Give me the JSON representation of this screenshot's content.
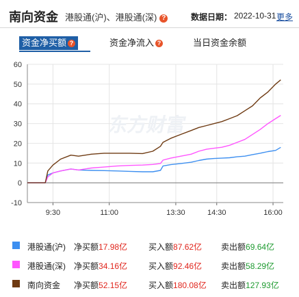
{
  "header": {
    "title": "南向资金",
    "subtitle": "港股通(沪)、港股通(深)",
    "help_icon": "question-icon",
    "date_label": "数据日期：",
    "date_value": "2022-10-31",
    "more_label": "更多"
  },
  "tabs": [
    {
      "label": "资金净买额",
      "active": true
    },
    {
      "label": "资金净流入",
      "active": false
    },
    {
      "label": "当日资金余额",
      "active": false
    }
  ],
  "watermark": "东方财富",
  "colors": {
    "accent": "#1f5fa6",
    "hgt_sh": "#3d8ff0",
    "hgt_sz": "#ff55ff",
    "south": "#6e3a12",
    "up": "#e0241b",
    "down": "#1d9a2f"
  },
  "chart_data": {
    "type": "line",
    "x_ticks": [
      "9:30",
      "11:00",
      "13:30",
      "14:30",
      "16:00"
    ],
    "y_ticks": [
      -10,
      0,
      10,
      20,
      30,
      40,
      50,
      60
    ],
    "ylim": [
      -10,
      60
    ],
    "grid": true,
    "series": [
      {
        "name": "港股通(沪)",
        "color": "#3d8ff0",
        "values": [
          [
            0,
            0
          ],
          [
            7,
            0
          ],
          [
            8,
            4
          ],
          [
            10,
            5
          ],
          [
            13,
            6
          ],
          [
            17,
            7
          ],
          [
            20,
            6.5
          ],
          [
            25,
            6.3
          ],
          [
            30,
            6.2
          ],
          [
            35,
            6.0
          ],
          [
            40,
            5.8
          ],
          [
            45,
            5.6
          ],
          [
            49,
            5.6
          ],
          [
            52,
            6.3
          ],
          [
            53,
            8.5
          ],
          [
            56,
            9.2
          ],
          [
            60,
            9.8
          ],
          [
            64,
            10.4
          ],
          [
            67,
            11.3
          ],
          [
            70,
            12.0
          ],
          [
            73,
            12.3
          ],
          [
            76,
            12.5
          ],
          [
            79,
            12.7
          ],
          [
            82,
            13.2
          ],
          [
            85,
            13.5
          ],
          [
            88,
            14.3
          ],
          [
            91,
            15.0
          ],
          [
            94,
            15.8
          ],
          [
            97,
            16.4
          ],
          [
            99,
            17.98
          ]
        ]
      },
      {
        "name": "港股通(深)",
        "color": "#ff55ff",
        "values": [
          [
            0,
            0
          ],
          [
            7,
            0
          ],
          [
            8,
            3
          ],
          [
            10,
            5
          ],
          [
            13,
            6
          ],
          [
            17,
            7
          ],
          [
            20,
            6.5
          ],
          [
            25,
            7.5
          ],
          [
            30,
            8.0
          ],
          [
            35,
            8.5
          ],
          [
            40,
            8.8
          ],
          [
            45,
            9.0
          ],
          [
            49,
            9.3
          ],
          [
            52,
            9.8
          ],
          [
            53,
            11.5
          ],
          [
            56,
            12.5
          ],
          [
            60,
            13.5
          ],
          [
            64,
            14.5
          ],
          [
            67,
            16.0
          ],
          [
            70,
            17.0
          ],
          [
            73,
            17.5
          ],
          [
            76,
            18.0
          ],
          [
            79,
            19.0
          ],
          [
            82,
            20.5
          ],
          [
            85,
            22.0
          ],
          [
            88,
            24.5
          ],
          [
            91,
            27.0
          ],
          [
            94,
            30.0
          ],
          [
            97,
            32.5
          ],
          [
            99,
            34.16
          ]
        ]
      },
      {
        "name": "南向资金",
        "color": "#6e3a12",
        "values": [
          [
            0,
            0
          ],
          [
            7,
            0
          ],
          [
            8,
            6
          ],
          [
            10,
            9
          ],
          [
            13,
            12
          ],
          [
            17,
            14
          ],
          [
            20,
            13.5
          ],
          [
            25,
            14.5
          ],
          [
            30,
            15.0
          ],
          [
            35,
            15.0
          ],
          [
            40,
            15.0
          ],
          [
            45,
            14.8
          ],
          [
            49,
            16.0
          ],
          [
            52,
            18.5
          ],
          [
            53,
            20.5
          ],
          [
            56,
            22.5
          ],
          [
            60,
            24.5
          ],
          [
            64,
            26.5
          ],
          [
            67,
            28.0
          ],
          [
            70,
            29.0
          ],
          [
            73,
            30.0
          ],
          [
            76,
            31.0
          ],
          [
            79,
            32.5
          ],
          [
            82,
            34.0
          ],
          [
            85,
            36.5
          ],
          [
            88,
            39.0
          ],
          [
            91,
            43.0
          ],
          [
            94,
            46.0
          ],
          [
            97,
            50.0
          ],
          [
            99,
            52.15
          ]
        ]
      }
    ]
  },
  "legend": [
    {
      "name": "港股通(沪)",
      "color": "#3d8ff0",
      "net_label": "净买额",
      "net_value": "17.98亿",
      "buy_label": "买入额",
      "buy_value": "87.62亿",
      "sell_label": "卖出额",
      "sell_value": "69.64亿"
    },
    {
      "name": "港股通(深)",
      "color": "#ff55ff",
      "net_label": "净买额",
      "net_value": "34.16亿",
      "buy_label": "买入额",
      "buy_value": "92.46亿",
      "sell_label": "卖出额",
      "sell_value": "58.29亿"
    },
    {
      "name": "南向资金",
      "color": "#6e3a12",
      "net_label": "净买额",
      "net_value": "52.15亿",
      "buy_label": "买入额",
      "buy_value": "180.08亿",
      "sell_label": "卖出额",
      "sell_value": "127.93亿"
    }
  ]
}
